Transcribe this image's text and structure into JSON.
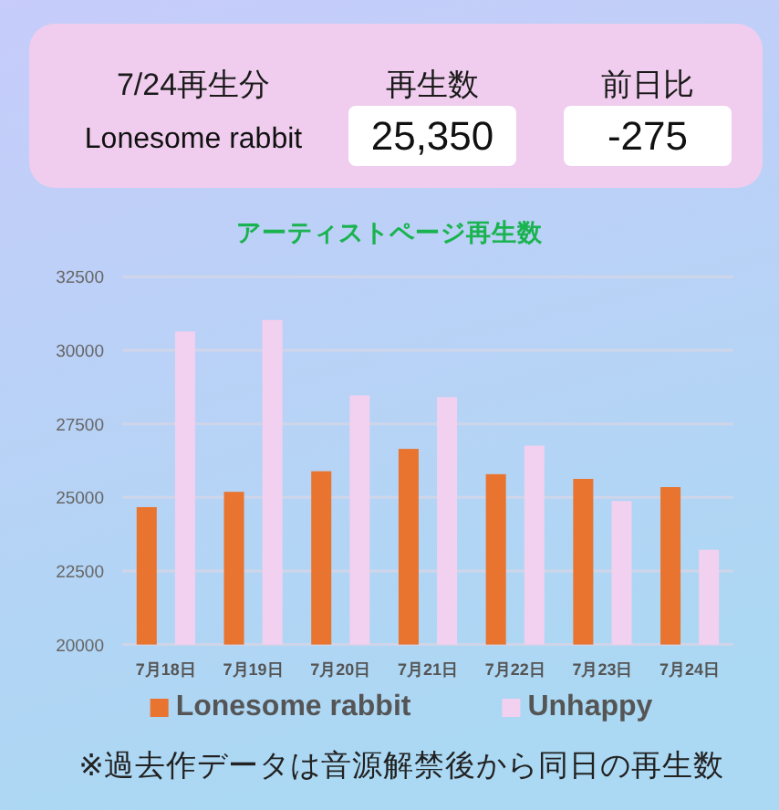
{
  "chart_data": [
    {
      "type": "other",
      "annotations": [
        "7/24再生分",
        "再生数",
        "前日比",
        "Lonesome rabbit",
        "25,350",
        "-275"
      ]
    },
    {
      "type": "bar",
      "title": "アーティストページ再生数",
      "categories": [
        "7月18日",
        "7月19日",
        "7月20日",
        "7月21日",
        "7月22日",
        "7月23日",
        "7月24日"
      ],
      "series": [
        {
          "name": "Lonesome rabbit",
          "color": "#e8742f",
          "values": [
            24670,
            25190,
            25890,
            26650,
            25790,
            25630,
            25350
          ]
        },
        {
          "name": "Unhappy",
          "color": "#f2d0ef",
          "values": [
            30640,
            31030,
            28470,
            28410,
            26760,
            24880,
            23220
          ]
        }
      ],
      "ylim": [
        20000,
        32500
      ],
      "yticks": [
        20000,
        22500,
        25000,
        27500,
        30000,
        32500
      ],
      "grid": "y",
      "legend": "bottom",
      "annotations": [
        "※過去作データは音源解禁後から同日の再生数"
      ]
    }
  ]
}
